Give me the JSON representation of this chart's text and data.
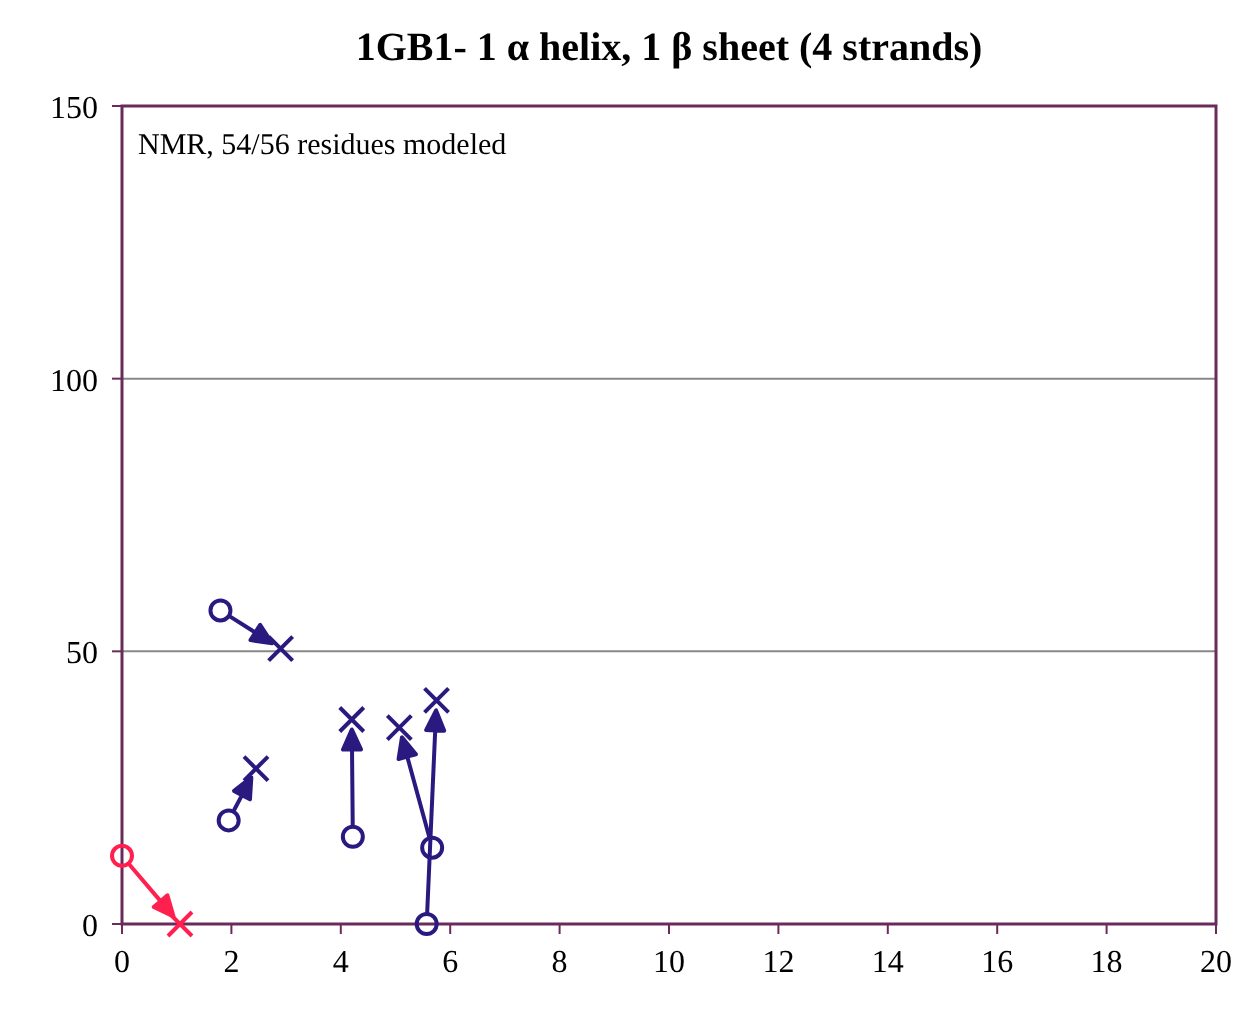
{
  "chart_data": {
    "type": "scatter",
    "title": "1GB1- 1 α helix, 1  β sheet (4 strands)",
    "annotations": [
      "NMR, 54/56 residues modeled"
    ],
    "xlim": [
      0,
      20
    ],
    "xticks": [
      0,
      2,
      4,
      6,
      8,
      10,
      12,
      14,
      16,
      18,
      20
    ],
    "ylim": [
      0,
      150
    ],
    "yticks": [
      0,
      50,
      100,
      150
    ],
    "grid": "y",
    "series": [
      {
        "color": "#ff2050",
        "marker": "circle",
        "x": [
          0
        ],
        "values": [
          12.5
        ]
      },
      {
        "color": "#ff2050",
        "marker": "cross",
        "x": [
          1.06
        ],
        "values": [
          0
        ]
      },
      {
        "color": "#2a1a80",
        "marker": "circle",
        "x": [
          1.8,
          1.95,
          4.22,
          5.67,
          5.57
        ],
        "values": [
          57.5,
          19,
          16,
          14,
          0
        ]
      },
      {
        "color": "#2a1a80",
        "marker": "cross",
        "x": [
          2.9,
          2.45,
          4.2,
          5.07,
          5.75
        ],
        "values": [
          50.5,
          28.5,
          37.5,
          36,
          41
        ]
      }
    ]
  }
}
